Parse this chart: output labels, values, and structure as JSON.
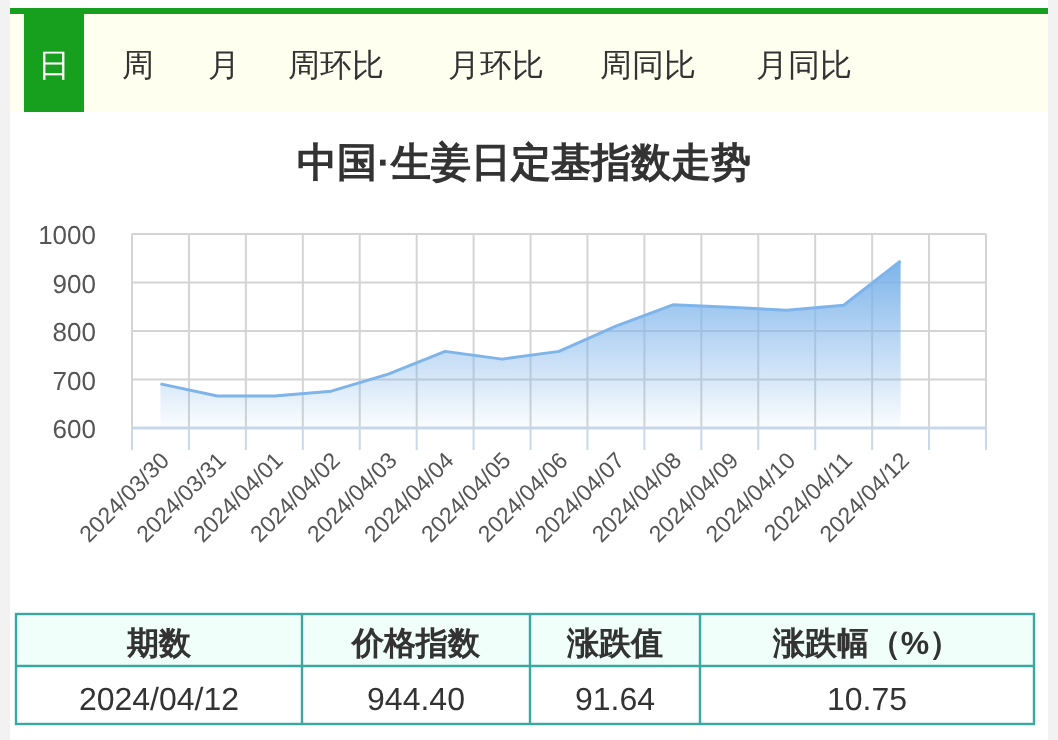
{
  "chart_data": {
    "type": "area",
    "title": "中国·生姜日定基指数走势",
    "categories": [
      "2024/03/30",
      "2024/03/31",
      "2024/04/01",
      "2024/04/02",
      "2024/04/03",
      "2024/04/04",
      "2024/04/05",
      "2024/04/06",
      "2024/04/07",
      "2024/04/08",
      "2024/04/09",
      "2024/04/10",
      "2024/04/11",
      "2024/04/12"
    ],
    "series": [
      {
        "color": "#7eb4ea",
        "values": [
          691,
          666,
          666,
          676,
          711,
          758,
          742,
          758,
          810,
          854,
          849,
          843,
          853,
          944.4
        ]
      }
    ],
    "ylim": [
      600,
      1000
    ],
    "yticks": [
      600,
      700,
      800,
      900,
      1000
    ],
    "grid": true,
    "annotations": [
      "日",
      "周",
      "月",
      "周环比",
      "月环比",
      "周同比",
      "月同比",
      "期数",
      "价格指数",
      "涨跌值",
      "涨跌幅（%）",
      "2024/04/12",
      "944.40",
      "91.64",
      "10.75"
    ]
  }
}
